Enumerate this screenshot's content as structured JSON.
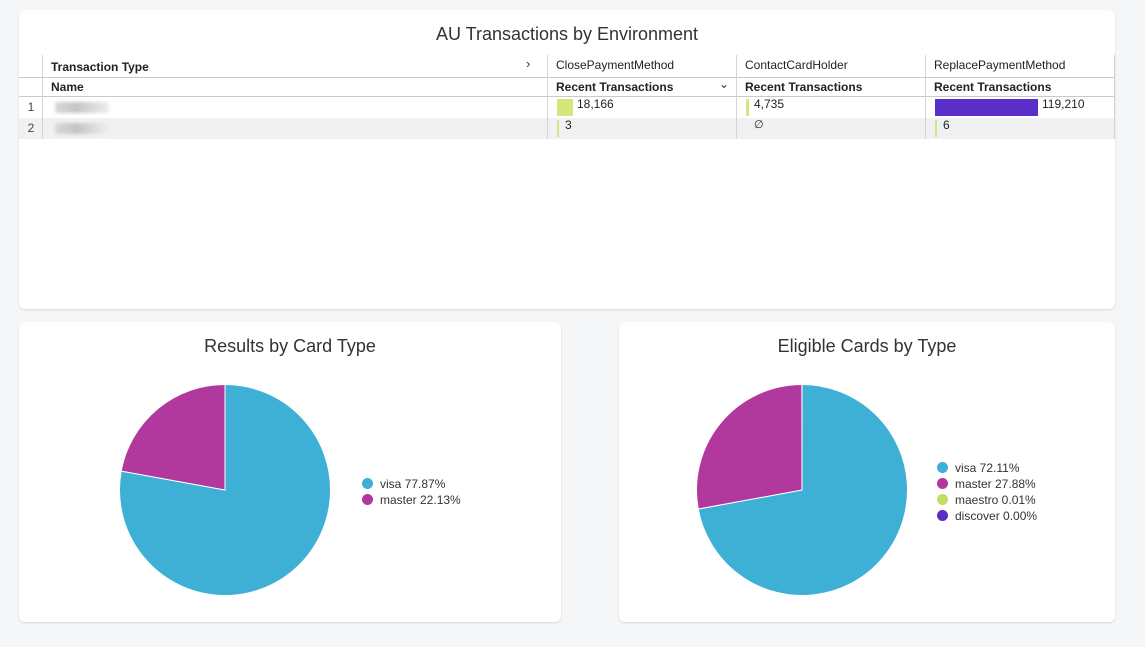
{
  "transactions": {
    "title": "AU Transactions by Environment",
    "header": {
      "dimension_label": "Transaction Type",
      "name_label": "Name",
      "columns": [
        {
          "name": "ClosePaymentMethod",
          "metric": "Recent Transactions"
        },
        {
          "name": "ContactCardHolder",
          "metric": "Recent Transactions"
        },
        {
          "name": "ReplacePaymentMethod",
          "metric": "Recent Transactions"
        }
      ]
    },
    "rows": [
      {
        "num": "1",
        "values": [
          "18,166",
          "4,735",
          "119,210"
        ],
        "raw": [
          18166,
          4735,
          119210
        ]
      },
      {
        "num": "2",
        "values": [
          "3",
          "∅",
          "6"
        ],
        "raw": [
          3,
          0,
          6
        ]
      }
    ],
    "colors": {
      "light_bar": "#d4e77d",
      "dark_bar": "#5a2fc9"
    }
  },
  "pie_card_type": {
    "title": "Results by Card Type",
    "chart_data": {
      "type": "pie",
      "labels": [
        "visa",
        "master"
      ],
      "values": [
        77.87,
        22.13
      ],
      "legend_text": [
        "visa 77.87%",
        "master 22.13%"
      ],
      "colors": [
        "#3eb0d5",
        "#b1399e"
      ],
      "legend": "right"
    }
  },
  "pie_eligible": {
    "title": "Eligible Cards by Type",
    "chart_data": {
      "type": "pie",
      "labels": [
        "visa",
        "master",
        "maestro",
        "discover"
      ],
      "values": [
        72.11,
        27.88,
        0.01,
        0.0
      ],
      "legend_text": [
        "visa 72.11%",
        "master 27.88%",
        "maestro 0.01%",
        "discover 0.00%"
      ],
      "colors": [
        "#3eb0d5",
        "#b1399e",
        "#c2dd67",
        "#592ec2"
      ],
      "legend": "right"
    }
  }
}
